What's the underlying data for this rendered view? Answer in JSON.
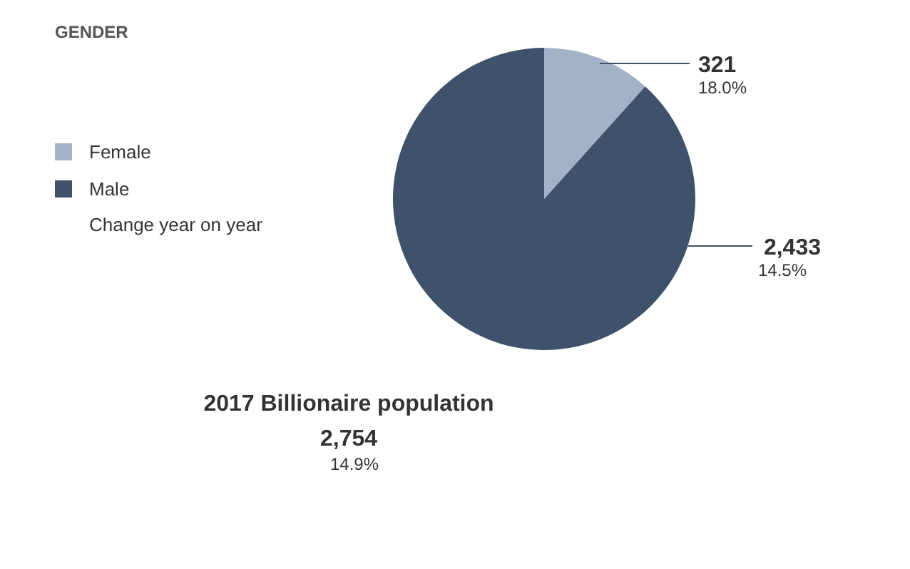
{
  "chart_data": {
    "type": "pie",
    "title": "GENDER",
    "categories": [
      "Female",
      "Male"
    ],
    "values": [
      321,
      2433
    ],
    "colors": [
      "#a4b2c7",
      "#3e536b"
    ],
    "value_labels": [
      "321",
      "2,433"
    ],
    "legend": "left",
    "annotations": [
      "Change year on year",
      "18.0%",
      "14.5%",
      "2017 Billionaire population",
      "2,754",
      "14.9%"
    ]
  }
}
